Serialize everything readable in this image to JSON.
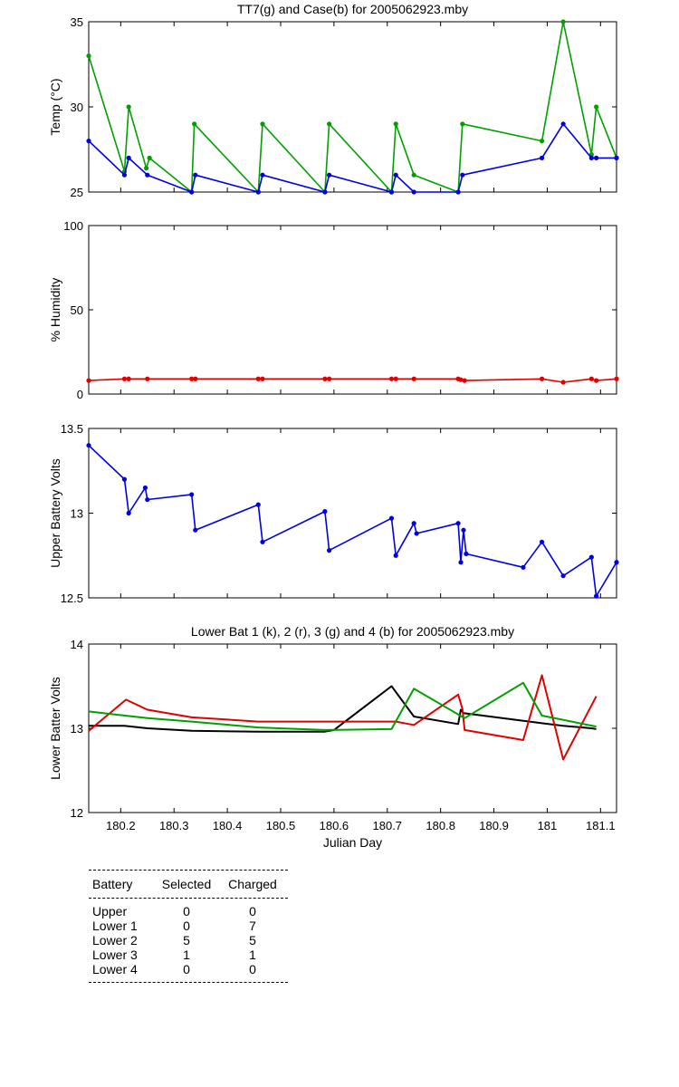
{
  "chart_data": [
    {
      "type": "line",
      "title": "TT7(g) and Case(b) for 2005062923.mby",
      "ylabel": "Temp  (°C)",
      "xlim": [
        180.14,
        181.13
      ],
      "ylim": [
        25,
        35
      ],
      "yticks": [
        25,
        30,
        35
      ],
      "markers": true,
      "series": [
        {
          "color": "#00a000",
          "x": [
            180.14,
            180.207,
            180.215,
            180.248,
            180.254,
            180.333,
            180.338,
            180.458,
            180.466,
            180.583,
            180.591,
            180.708,
            180.716,
            180.75,
            180.833,
            180.841,
            180.99,
            181.03,
            181.083,
            181.092,
            181.13
          ],
          "y": [
            33,
            26.2,
            30,
            26.4,
            27,
            25,
            29,
            25,
            29,
            25,
            29,
            25,
            29,
            26,
            25,
            29,
            28,
            35,
            27.2,
            30,
            27
          ]
        },
        {
          "color": "#0000e0",
          "x": [
            180.14,
            180.207,
            180.215,
            180.25,
            180.333,
            180.34,
            180.458,
            180.466,
            180.583,
            180.591,
            180.708,
            180.716,
            180.75,
            180.833,
            180.841,
            180.99,
            181.03,
            181.083,
            181.092,
            181.13
          ],
          "y": [
            28,
            26,
            27,
            26,
            25,
            26,
            25,
            26,
            25,
            26,
            25,
            26,
            25,
            25,
            26,
            27,
            29,
            27,
            27,
            27
          ]
        }
      ]
    },
    {
      "type": "line",
      "ylabel": "% Humidity",
      "xlim": [
        180.14,
        181.13
      ],
      "ylim": [
        0,
        100
      ],
      "yticks": [
        0,
        50,
        100
      ],
      "markers": true,
      "series": [
        {
          "color": "#e00000",
          "x": [
            180.14,
            180.207,
            180.215,
            180.25,
            180.333,
            180.34,
            180.458,
            180.466,
            180.583,
            180.591,
            180.708,
            180.716,
            180.75,
            180.833,
            180.838,
            180.845,
            180.99,
            181.03,
            181.083,
            181.092,
            181.13
          ],
          "y": [
            8,
            9,
            9,
            9,
            9,
            9,
            9,
            9,
            9,
            9,
            9,
            9,
            9,
            9,
            8.5,
            8,
            9,
            7,
            9,
            8,
            9
          ]
        }
      ]
    },
    {
      "type": "line",
      "ylabel": "Upper Battery Volts",
      "xlim": [
        180.14,
        181.13
      ],
      "ylim": [
        12.5,
        13.5
      ],
      "yticks": [
        12.5,
        13,
        13.5
      ],
      "markers": true,
      "series": [
        {
          "color": "#0000e0",
          "x": [
            180.14,
            180.207,
            180.215,
            180.246,
            180.25,
            180.333,
            180.34,
            180.458,
            180.466,
            180.583,
            180.591,
            180.708,
            180.716,
            180.75,
            180.755,
            180.833,
            180.838,
            180.843,
            180.848,
            180.955,
            180.99,
            181.03,
            181.083,
            181.092,
            181.13
          ],
          "y": [
            13.4,
            13.2,
            13.0,
            13.15,
            13.08,
            13.11,
            12.9,
            13.05,
            12.83,
            13.01,
            12.78,
            12.97,
            12.75,
            12.94,
            12.88,
            12.94,
            12.71,
            12.9,
            12.76,
            12.68,
            12.83,
            12.63,
            12.74,
            12.51,
            12.71
          ]
        }
      ]
    },
    {
      "type": "line",
      "title": "Lower Bat 1 (k), 2 (r), 3 (g) and 4 (b) for 2005062923.mby",
      "xlabel": "Julian Day",
      "ylabel": "Lower Batter Volts",
      "xlim": [
        180.14,
        181.13
      ],
      "ylim": [
        12,
        14
      ],
      "yticks": [
        12,
        13,
        14
      ],
      "xticks": [
        180.2,
        180.3,
        180.4,
        180.5,
        180.6,
        180.7,
        180.8,
        180.9,
        181,
        181.1
      ],
      "xticklabels": [
        "180.2",
        "180.3",
        "180.4",
        "180.5",
        "180.6",
        "180.7",
        "180.8",
        "180.9",
        "181",
        "181.1"
      ],
      "markers": false,
      "series": [
        {
          "color": "#000000",
          "x": [
            180.14,
            180.207,
            180.25,
            180.333,
            180.458,
            180.583,
            180.6,
            180.708,
            180.75,
            180.833,
            180.838,
            180.843,
            180.99,
            181.03,
            181.083,
            181.092
          ],
          "y": [
            13.03,
            13.03,
            13.0,
            12.97,
            12.96,
            12.96,
            12.98,
            13.5,
            13.14,
            13.05,
            13.22,
            13.18,
            13.06,
            13.03,
            13.0,
            12.99
          ]
        },
        {
          "color": "#e00000",
          "x": [
            180.14,
            180.21,
            180.25,
            180.333,
            180.458,
            180.583,
            180.716,
            180.75,
            180.833,
            180.841,
            180.845,
            180.955,
            180.99,
            181.03,
            181.092
          ],
          "y": [
            12.97,
            13.34,
            13.22,
            13.13,
            13.08,
            13.08,
            13.08,
            13.04,
            13.4,
            13.23,
            12.98,
            12.86,
            13.63,
            12.63,
            13.38
          ]
        },
        {
          "color": "#00a000",
          "x": [
            180.14,
            180.25,
            180.333,
            180.458,
            180.583,
            180.708,
            180.75,
            180.845,
            180.955,
            180.99,
            181.092
          ],
          "y": [
            13.2,
            13.12,
            13.08,
            13.01,
            12.98,
            12.99,
            13.47,
            13.12,
            13.54,
            13.15,
            13.02
          ]
        }
      ]
    }
  ],
  "battery_table": {
    "headers": [
      "Battery",
      "Selected",
      "Charged"
    ],
    "rows": [
      [
        "Upper",
        "0",
        "0"
      ],
      [
        "Lower 1",
        "0",
        "7"
      ],
      [
        "Lower 2",
        "5",
        "5"
      ],
      [
        "Lower 3",
        "1",
        "1"
      ],
      [
        "Lower 4",
        "0",
        "0"
      ]
    ]
  }
}
